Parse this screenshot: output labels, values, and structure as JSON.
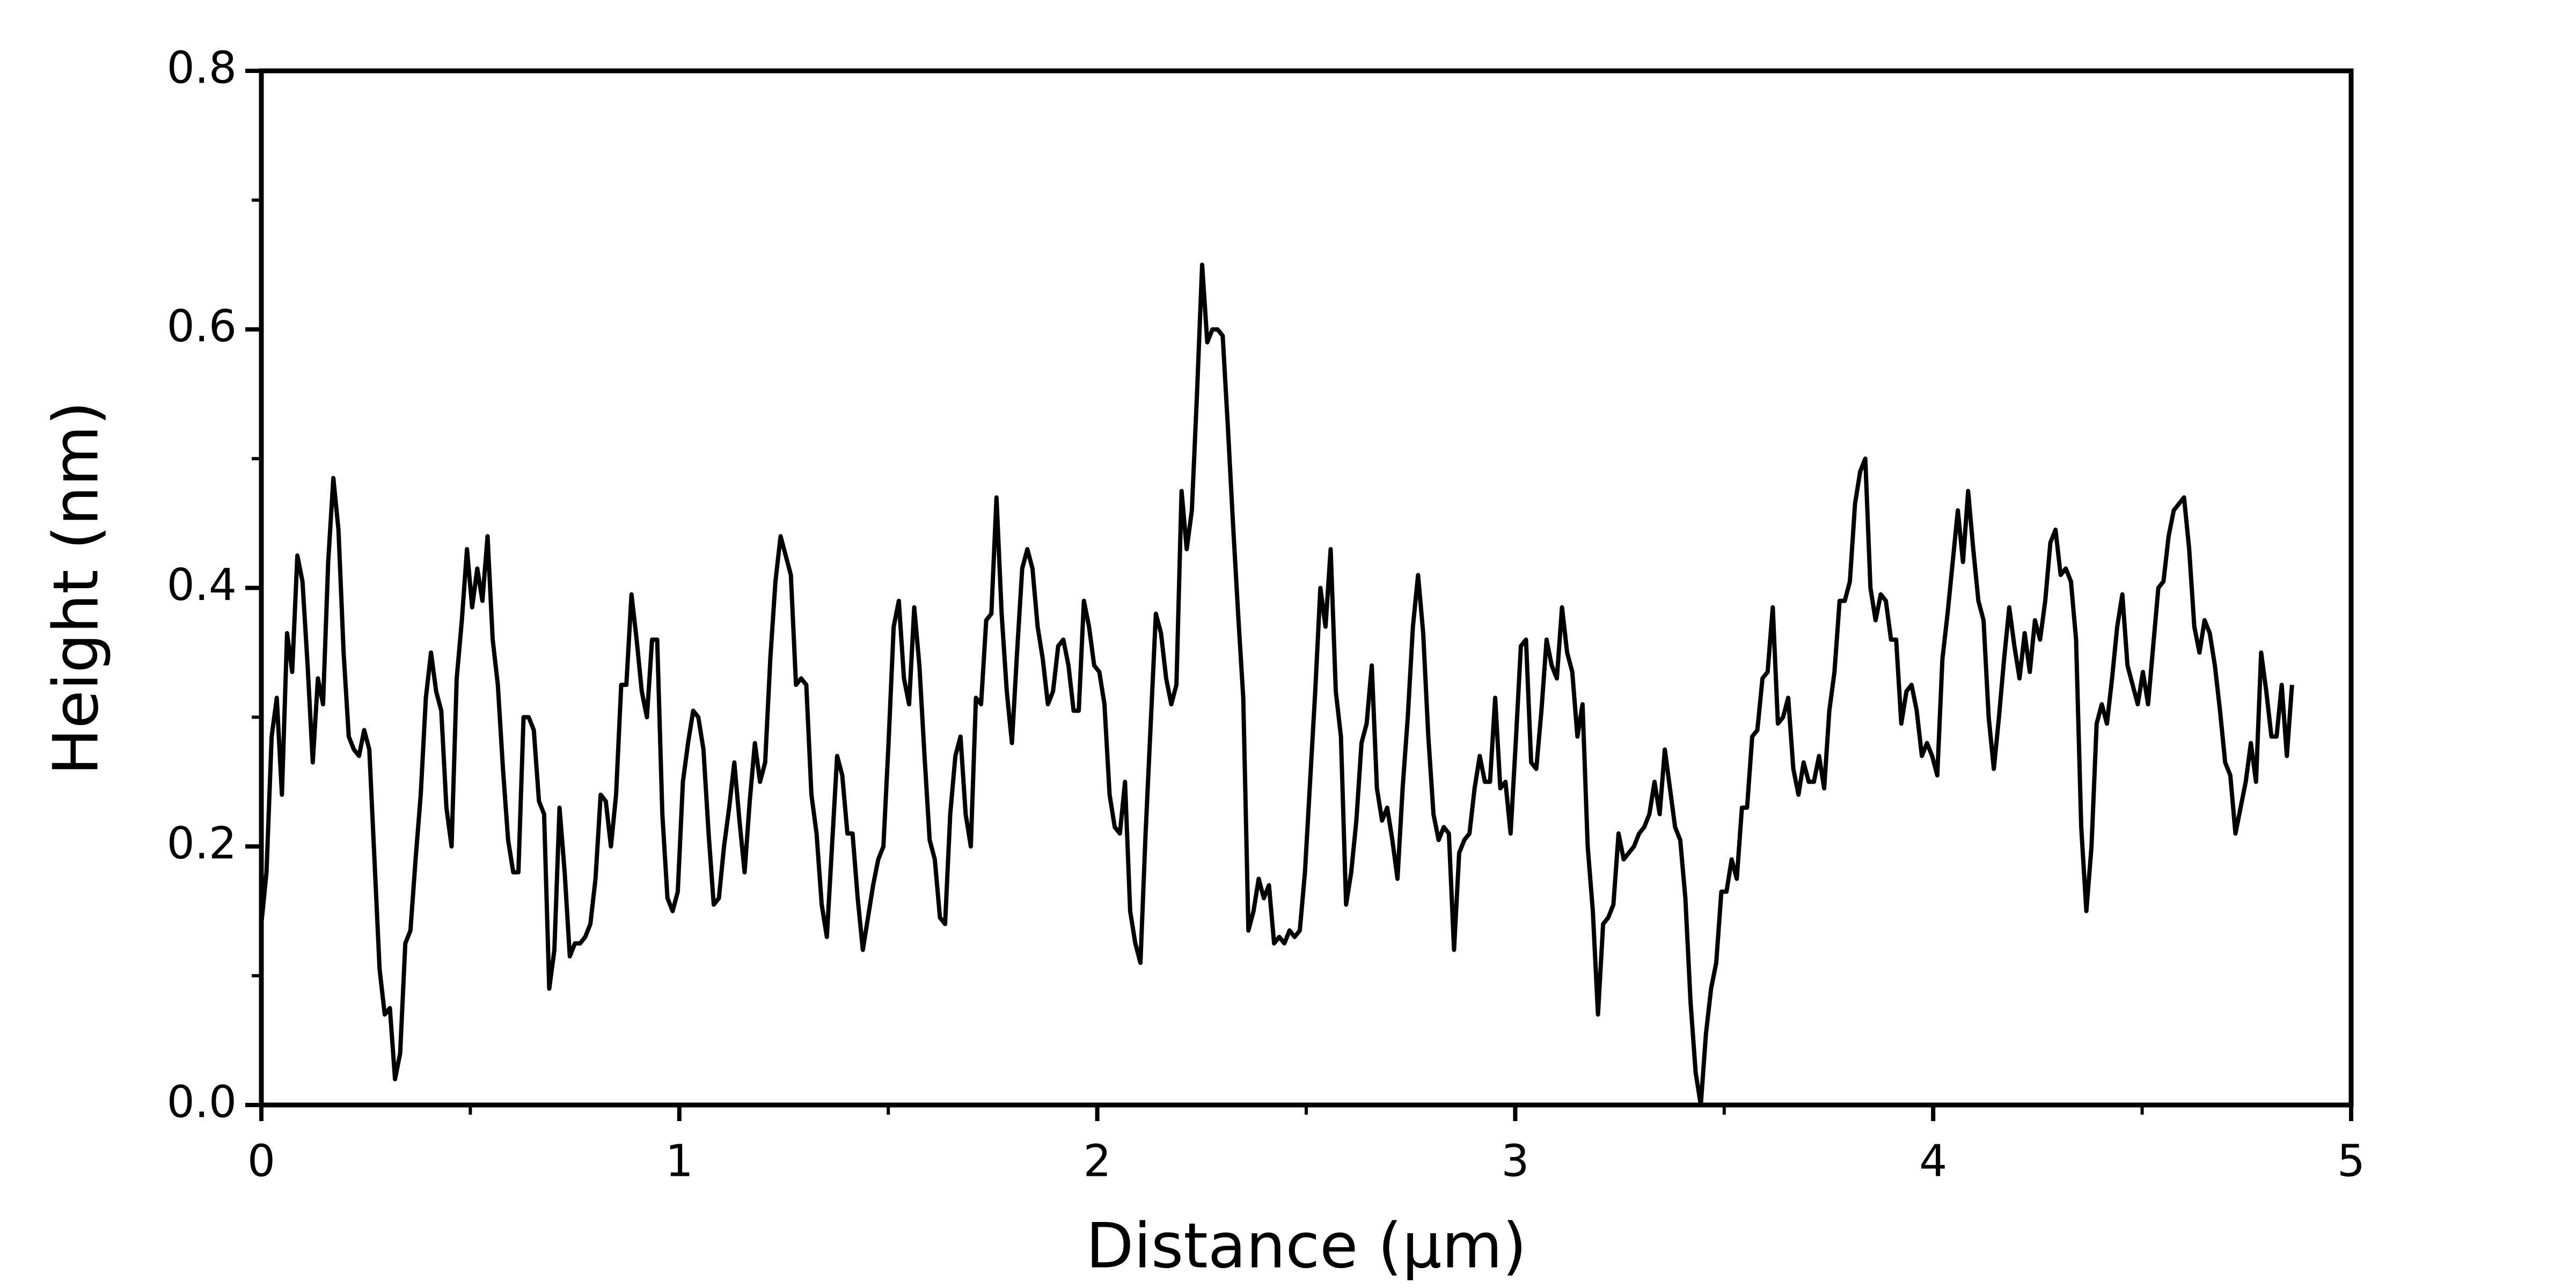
{
  "chart_data": {
    "type": "line",
    "xlabel": "Distance (μm)",
    "ylabel": "Height (nm)",
    "color": "#000000",
    "xlim": [
      0,
      5
    ],
    "ylim": [
      0,
      0.8
    ],
    "xticks": [
      0,
      1,
      2,
      3,
      4,
      5
    ],
    "yticks": [
      {
        "value": 0,
        "label": "0.0"
      },
      0.2,
      0.4,
      0.6,
      0.8
    ],
    "xminorticks": [
      0.5,
      1.5,
      2.5,
      3.5,
      4.5
    ],
    "yminorticks": [
      0.1,
      0.3,
      0.5,
      0.7
    ],
    "grid": false,
    "x": [
      0,
      0.0123,
      0.0246,
      0.0369,
      0.0492,
      0.0615,
      0.0738,
      0.0861,
      0.0984,
      0.1107,
      0.123,
      0.1353,
      0.1476,
      0.1599,
      0.1722,
      0.1845,
      0.1968,
      0.2091,
      0.2214,
      0.2337,
      0.246,
      0.2583,
      0.2706,
      0.2829,
      0.2952,
      0.3075,
      0.3198,
      0.3321,
      0.3444,
      0.3567,
      0.369,
      0.3813,
      0.3936,
      0.4059,
      0.4182,
      0.4305,
      0.4428,
      0.4551,
      0.4674,
      0.4797,
      0.492,
      0.5043,
      0.5166,
      0.5289,
      0.5412,
      0.5535,
      0.5658,
      0.5781,
      0.5904,
      0.6027,
      0.615,
      0.6273,
      0.6396,
      0.6519,
      0.6642,
      0.6765,
      0.6888,
      0.7011,
      0.7134,
      0.7257,
      0.738,
      0.7503,
      0.7626,
      0.7749,
      0.7872,
      0.7995,
      0.8118,
      0.8241,
      0.8364,
      0.8487,
      0.861,
      0.8733,
      0.8856,
      0.8979,
      0.9102,
      0.9225,
      0.9348,
      0.9471,
      0.9594,
      0.9717,
      0.984,
      0.9963,
      1.0086,
      1.0209,
      1.0332,
      1.0455,
      1.0578,
      1.0701,
      1.0824,
      1.0947,
      1.107,
      1.1193,
      1.1316,
      1.1439,
      1.1562,
      1.1685,
      1.1808,
      1.1931,
      1.2054,
      1.2177,
      1.23,
      1.2423,
      1.2546,
      1.2669,
      1.2792,
      1.2915,
      1.3038,
      1.3161,
      1.3284,
      1.3407,
      1.353,
      1.3653,
      1.3776,
      1.3899,
      1.4022,
      1.4145,
      1.4268,
      1.4391,
      1.4514,
      1.4637,
      1.476,
      1.4883,
      1.5006,
      1.5129,
      1.5252,
      1.5375,
      1.5498,
      1.5621,
      1.5744,
      1.5867,
      1.599,
      1.6113,
      1.6236,
      1.6359,
      1.6482,
      1.6605,
      1.6728,
      1.6851,
      1.6974,
      1.7097,
      1.722,
      1.7343,
      1.7466,
      1.7589,
      1.7712,
      1.7835,
      1.7958,
      1.8081,
      1.8204,
      1.8327,
      1.845,
      1.8573,
      1.8696,
      1.8819,
      1.8942,
      1.9065,
      1.9188,
      1.9311,
      1.9434,
      1.9557,
      1.968,
      1.9803,
      1.9926,
      2.0049,
      2.0172,
      2.0295,
      2.0418,
      2.0541,
      2.0664,
      2.0787,
      2.091,
      2.1033,
      2.1156,
      2.1279,
      2.1402,
      2.1525,
      2.1648,
      2.1771,
      2.1894,
      2.2017,
      2.214,
      2.2263,
      2.2386,
      2.2509,
      2.2632,
      2.2755,
      2.2878,
      2.3001,
      2.3124,
      2.3247,
      2.337,
      2.3493,
      2.3616,
      2.3739,
      2.3862,
      2.3985,
      2.4108,
      2.4231,
      2.4354,
      2.4477,
      2.46,
      2.4723,
      2.4846,
      2.4969,
      2.5092,
      2.5215,
      2.5338,
      2.5461,
      2.5584,
      2.5707,
      2.583,
      2.5953,
      2.6076,
      2.6199,
      2.6322,
      2.6445,
      2.6568,
      2.6691,
      2.6814,
      2.6937,
      2.706,
      2.7183,
      2.7306,
      2.7429,
      2.7552,
      2.7675,
      2.7798,
      2.7921,
      2.8044,
      2.8167,
      2.829,
      2.8413,
      2.8536,
      2.8659,
      2.8782,
      2.8905,
      2.9028,
      2.9151,
      2.9274,
      2.9397,
      2.952,
      2.9643,
      2.9766,
      2.9889,
      3.0012,
      3.0135,
      3.0258,
      3.0381,
      3.0504,
      3.0627,
      3.075,
      3.0873,
      3.0996,
      3.1119,
      3.1242,
      3.1365,
      3.1488,
      3.1611,
      3.1734,
      3.1857,
      3.198,
      3.2103,
      3.2226,
      3.2349,
      3.2472,
      3.2595,
      3.2718,
      3.2841,
      3.2964,
      3.3087,
      3.321,
      3.3333,
      3.3456,
      3.3579,
      3.3702,
      3.3825,
      3.3948,
      3.4071,
      3.4194,
      3.4317,
      3.444,
      3.4563,
      3.4686,
      3.4809,
      3.4932,
      3.5055,
      3.5178,
      3.5301,
      3.5424,
      3.5547,
      3.567,
      3.5793,
      3.5916,
      3.6039,
      3.6162,
      3.6285,
      3.6408,
      3.6531,
      3.6654,
      3.6777,
      3.69,
      3.7023,
      3.7146,
      3.7269,
      3.7392,
      3.7515,
      3.7638,
      3.7761,
      3.7884,
      3.8007,
      3.813,
      3.8253,
      3.8376,
      3.8499,
      3.8622,
      3.8745,
      3.8868,
      3.8991,
      3.9114,
      3.9237,
      3.936,
      3.9483,
      3.9606,
      3.9729,
      3.9852,
      3.9975,
      4.0098,
      4.0221,
      4.0344,
      4.0467,
      4.059,
      4.0713,
      4.0836,
      4.0959,
      4.1082,
      4.1205,
      4.1328,
      4.1451,
      4.1574,
      4.1697,
      4.182,
      4.1943,
      4.2066,
      4.2189,
      4.2312,
      4.2435,
      4.2558,
      4.2681,
      4.2804,
      4.2927,
      4.305,
      4.3173,
      4.3296,
      4.3419,
      4.3542,
      4.3665,
      4.3788,
      4.3911,
      4.4034,
      4.4157,
      4.428,
      4.4403,
      4.4526,
      4.4649,
      4.4772,
      4.4895,
      4.5018,
      4.5141,
      4.5264,
      4.5387,
      4.551,
      4.5633,
      4.5756,
      4.5879,
      4.6002,
      4.6125,
      4.6248,
      4.6371,
      4.6494,
      4.6617,
      4.674,
      4.6863,
      4.6986,
      4.7109,
      4.7232,
      4.7355,
      4.7478,
      4.7601,
      4.7724,
      4.7847,
      4.797,
      4.8093,
      4.8216,
      4.8339,
      4.8462,
      4.8585
    ],
    "values": [
      0.14,
      0.18,
      0.285,
      0.315,
      0.24,
      0.365,
      0.335,
      0.425,
      0.405,
      0.34,
      0.265,
      0.33,
      0.31,
      0.42,
      0.485,
      0.445,
      0.35,
      0.285,
      0.275,
      0.27,
      0.29,
      0.275,
      0.19,
      0.105,
      0.07,
      0.075,
      0.02,
      0.04,
      0.125,
      0.135,
      0.19,
      0.24,
      0.315,
      0.35,
      0.32,
      0.305,
      0.23,
      0.2,
      0.33,
      0.375,
      0.43,
      0.385,
      0.415,
      0.39,
      0.44,
      0.36,
      0.325,
      0.26,
      0.205,
      0.18,
      0.18,
      0.3,
      0.3,
      0.29,
      0.235,
      0.225,
      0.09,
      0.12,
      0.23,
      0.18,
      0.115,
      0.125,
      0.125,
      0.13,
      0.14,
      0.175,
      0.24,
      0.235,
      0.2,
      0.24,
      0.325,
      0.325,
      0.395,
      0.36,
      0.32,
      0.3,
      0.36,
      0.36,
      0.225,
      0.16,
      0.15,
      0.165,
      0.25,
      0.28,
      0.305,
      0.3,
      0.275,
      0.21,
      0.155,
      0.16,
      0.2,
      0.23,
      0.265,
      0.22,
      0.18,
      0.235,
      0.28,
      0.25,
      0.265,
      0.345,
      0.405,
      0.44,
      0.425,
      0.41,
      0.325,
      0.33,
      0.325,
      0.24,
      0.21,
      0.155,
      0.13,
      0.2,
      0.27,
      0.255,
      0.21,
      0.21,
      0.16,
      0.12,
      0.145,
      0.17,
      0.19,
      0.2,
      0.28,
      0.37,
      0.39,
      0.33,
      0.31,
      0.385,
      0.34,
      0.27,
      0.205,
      0.19,
      0.145,
      0.14,
      0.225,
      0.27,
      0.285,
      0.225,
      0.2,
      0.315,
      0.31,
      0.375,
      0.38,
      0.47,
      0.38,
      0.32,
      0.28,
      0.35,
      0.415,
      0.43,
      0.415,
      0.37,
      0.345,
      0.31,
      0.32,
      0.355,
      0.36,
      0.34,
      0.305,
      0.305,
      0.39,
      0.37,
      0.34,
      0.335,
      0.31,
      0.24,
      0.215,
      0.21,
      0.25,
      0.15,
      0.125,
      0.11,
      0.21,
      0.295,
      0.38,
      0.365,
      0.33,
      0.31,
      0.325,
      0.475,
      0.43,
      0.46,
      0.55,
      0.65,
      0.59,
      0.6,
      0.6,
      0.595,
      0.525,
      0.45,
      0.38,
      0.315,
      0.135,
      0.15,
      0.175,
      0.16,
      0.17,
      0.125,
      0.13,
      0.125,
      0.135,
      0.13,
      0.135,
      0.18,
      0.25,
      0.32,
      0.4,
      0.37,
      0.43,
      0.32,
      0.285,
      0.155,
      0.18,
      0.22,
      0.28,
      0.295,
      0.34,
      0.245,
      0.22,
      0.23,
      0.205,
      0.175,
      0.245,
      0.3,
      0.37,
      0.41,
      0.365,
      0.285,
      0.225,
      0.205,
      0.215,
      0.21,
      0.12,
      0.195,
      0.205,
      0.21,
      0.245,
      0.27,
      0.25,
      0.25,
      0.315,
      0.245,
      0.25,
      0.21,
      0.28,
      0.355,
      0.36,
      0.265,
      0.26,
      0.305,
      0.36,
      0.34,
      0.33,
      0.385,
      0.35,
      0.335,
      0.285,
      0.31,
      0.2,
      0.15,
      0.07,
      0.14,
      0.145,
      0.155,
      0.21,
      0.19,
      0.195,
      0.2,
      0.21,
      0.215,
      0.225,
      0.25,
      0.225,
      0.275,
      0.245,
      0.215,
      0.205,
      0.16,
      0.08,
      0.025,
      0,
      0.055,
      0.09,
      0.11,
      0.165,
      0.165,
      0.19,
      0.175,
      0.23,
      0.23,
      0.285,
      0.29,
      0.33,
      0.335,
      0.385,
      0.295,
      0.3,
      0.315,
      0.26,
      0.24,
      0.265,
      0.25,
      0.25,
      0.27,
      0.245,
      0.305,
      0.335,
      0.39,
      0.39,
      0.405,
      0.465,
      0.49,
      0.5,
      0.4,
      0.375,
      0.395,
      0.39,
      0.36,
      0.36,
      0.295,
      0.32,
      0.325,
      0.305,
      0.27,
      0.28,
      0.27,
      0.255,
      0.345,
      0.38,
      0.42,
      0.46,
      0.42,
      0.475,
      0.43,
      0.39,
      0.375,
      0.3,
      0.26,
      0.3,
      0.345,
      0.385,
      0.355,
      0.33,
      0.365,
      0.335,
      0.375,
      0.36,
      0.39,
      0.435,
      0.445,
      0.41,
      0.415,
      0.405,
      0.36,
      0.215,
      0.15,
      0.2,
      0.295,
      0.31,
      0.295,
      0.33,
      0.37,
      0.395,
      0.34,
      0.325,
      0.31,
      0.335,
      0.31,
      0.355,
      0.4,
      0.405,
      0.44,
      0.46,
      0.465,
      0.47,
      0.43,
      0.37,
      0.35,
      0.375,
      0.365,
      0.34,
      0.305,
      0.265,
      0.255,
      0.21,
      0.23,
      0.25,
      0.28,
      0.25,
      0.35,
      0.32,
      0.285,
      0.285,
      0.325,
      0.27,
      0.325
    ]
  }
}
